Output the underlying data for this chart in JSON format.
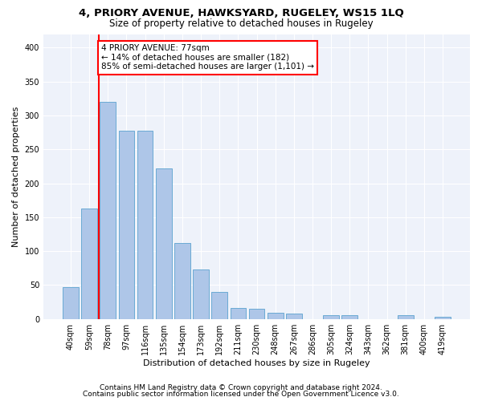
{
  "title1": "4, PRIORY AVENUE, HAWKSYARD, RUGELEY, WS15 1LQ",
  "title2": "Size of property relative to detached houses in Rugeley",
  "xlabel": "Distribution of detached houses by size in Rugeley",
  "ylabel": "Number of detached properties",
  "categories": [
    "40sqm",
    "59sqm",
    "78sqm",
    "97sqm",
    "116sqm",
    "135sqm",
    "154sqm",
    "173sqm",
    "192sqm",
    "211sqm",
    "230sqm",
    "248sqm",
    "267sqm",
    "286sqm",
    "305sqm",
    "324sqm",
    "343sqm",
    "362sqm",
    "381sqm",
    "400sqm",
    "419sqm"
  ],
  "values": [
    47,
    163,
    320,
    277,
    277,
    222,
    112,
    73,
    40,
    16,
    15,
    9,
    8,
    0,
    5,
    5,
    0,
    0,
    5,
    0,
    3
  ],
  "bar_color": "#aec6e8",
  "bar_edge_color": "#6aaad4",
  "vline_color": "red",
  "vline_index": 2,
  "annotation_text": "4 PRIORY AVENUE: 77sqm\n← 14% of detached houses are smaller (182)\n85% of semi-detached houses are larger (1,101) →",
  "footer1": "Contains HM Land Registry data © Crown copyright and database right 2024.",
  "footer2": "Contains public sector information licensed under the Open Government Licence v3.0.",
  "ylim": [
    0,
    420
  ],
  "yticks": [
    0,
    50,
    100,
    150,
    200,
    250,
    300,
    350,
    400
  ],
  "bg_color": "#eef2fa",
  "grid_color": "white",
  "title1_fontsize": 9.5,
  "title2_fontsize": 8.5,
  "axis_label_fontsize": 8,
  "tick_fontsize": 7,
  "footer_fontsize": 6.5,
  "annotation_fontsize": 7.5
}
